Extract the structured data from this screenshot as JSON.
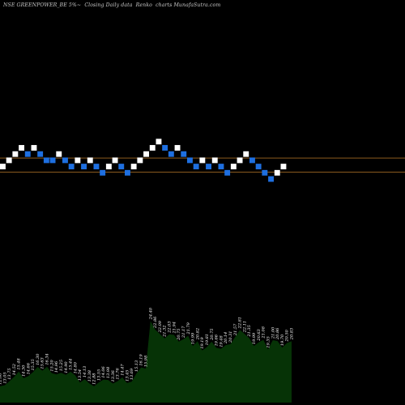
{
  "header": {
    "title": "NSE GREENPOWER_BE 5%~  Closing Daily data  Renko  charts MunafaSutra.com"
  },
  "colors": {
    "background": "#000000",
    "up_brick": "#ffffff",
    "down_brick": "#1e6fe0",
    "reference_line": "#8b5a1e",
    "volume_fill": "#063306"
  },
  "chart_data": {
    "type": "renko",
    "brick_levels": [
      0,
      1,
      2,
      3,
      2,
      3,
      2,
      1,
      1,
      2,
      1,
      0,
      1,
      0,
      1,
      0,
      -1,
      0,
      1,
      0,
      -1,
      0,
      1,
      2,
      3,
      4,
      3,
      2,
      3,
      2,
      1,
      0,
      1,
      0,
      1,
      0,
      -1,
      0,
      1,
      2,
      1,
      0,
      -1,
      -2,
      -1,
      0
    ],
    "brick_direction": [
      "up",
      "up",
      "up",
      "up",
      "down",
      "up",
      "down",
      "down",
      "down",
      "up",
      "down",
      "down",
      "up",
      "down",
      "up",
      "down",
      "down",
      "up",
      "up",
      "down",
      "down",
      "up",
      "up",
      "up",
      "up",
      "up",
      "down",
      "down",
      "up",
      "down",
      "down",
      "down",
      "up",
      "down",
      "up",
      "down",
      "down",
      "up",
      "up",
      "up",
      "down",
      "down",
      "down",
      "down",
      "up",
      "up"
    ],
    "reference_levels": [
      0,
      -0.7
    ],
    "volume_labels": [
      "12.88",
      "13.05",
      "13.75",
      "14.52",
      "15.48",
      "14.30",
      "14.66",
      "15.35",
      "16.30",
      "15.63",
      "16.34",
      "15.20",
      "14.96",
      "15.25",
      "14.90",
      "15.44",
      "14.80",
      "13.54",
      "14.13",
      "13.38",
      "12.88",
      "13.55",
      "14.06",
      "13.98",
      "13.36",
      "13.76",
      "14.47",
      "13.45",
      "13.69",
      "15.13",
      "16.19",
      "15.98",
      "24.40",
      "22.86",
      "22.09",
      "21.32",
      "22.03",
      "21.94",
      "20.75",
      "21.17",
      "21.79",
      "19.99",
      "20.82",
      "19.19",
      "19.81",
      "20.75",
      "19.66",
      "19.48",
      "20.14",
      "20.31",
      "21.57",
      "22.81",
      "22.11",
      "21.35",
      "19.99",
      "20.63",
      "21.08",
      "19.35",
      "21.00",
      "20.86",
      "19.70",
      "20.50",
      "20.83"
    ],
    "volume_values": [
      12.88,
      13.05,
      13.75,
      14.52,
      15.48,
      14.3,
      14.66,
      15.35,
      16.3,
      15.63,
      16.34,
      15.2,
      14.96,
      15.25,
      14.9,
      15.44,
      14.8,
      13.54,
      14.13,
      13.38,
      12.88,
      13.55,
      14.06,
      13.98,
      13.36,
      13.76,
      14.47,
      13.45,
      13.69,
      15.13,
      16.19,
      15.98,
      24.4,
      22.86,
      22.09,
      21.32,
      22.03,
      21.94,
      20.75,
      21.17,
      21.79,
      19.99,
      20.82,
      19.19,
      19.81,
      20.75,
      19.66,
      19.48,
      20.14,
      20.31,
      21.57,
      22.81,
      22.11,
      21.35,
      19.99,
      20.63,
      21.08,
      19.35,
      21.0,
      20.86,
      19.7,
      20.5,
      20.83
    ],
    "volume_ylim": [
      10,
      26
    ]
  }
}
